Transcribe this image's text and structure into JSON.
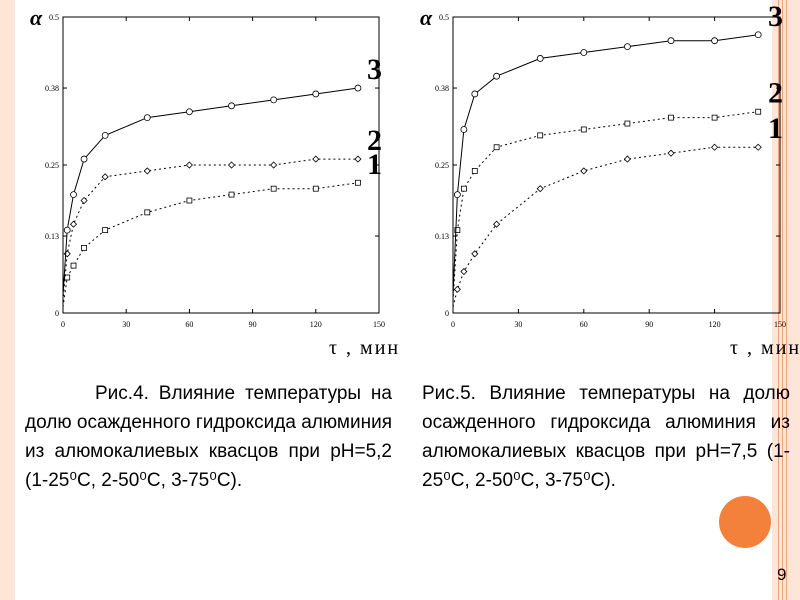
{
  "chart_data": [
    {
      "type": "scatter",
      "xlabel": "τ , мин",
      "ylabel": "α",
      "xlim": [
        0,
        150
      ],
      "ylim": [
        0,
        0.5
      ],
      "x_ticks": [
        "0",
        "30",
        "60",
        "90",
        "120",
        "150"
      ],
      "y_ticks": [
        "0",
        "0.13",
        "0.25",
        "0.38",
        "0.5"
      ],
      "series": [
        {
          "name": "1",
          "marker": "square",
          "x": [
            0,
            2,
            5,
            10,
            20,
            40,
            60,
            80,
            100,
            120,
            140
          ],
          "y": [
            0.01,
            0.06,
            0.08,
            0.11,
            0.14,
            0.17,
            0.19,
            0.2,
            0.21,
            0.21,
            0.22
          ]
        },
        {
          "name": "2",
          "marker": "diamond",
          "x": [
            0,
            2,
            5,
            10,
            20,
            40,
            60,
            80,
            100,
            120,
            140
          ],
          "y": [
            0.02,
            0.1,
            0.15,
            0.19,
            0.23,
            0.24,
            0.25,
            0.25,
            0.25,
            0.26,
            0.26
          ]
        },
        {
          "name": "3",
          "marker": "circle",
          "x": [
            0,
            2,
            5,
            10,
            20,
            40,
            60,
            80,
            100,
            120,
            140
          ],
          "y": [
            0.03,
            0.14,
            0.2,
            0.26,
            0.3,
            0.33,
            0.34,
            0.35,
            0.36,
            0.37,
            0.38
          ]
        }
      ]
    },
    {
      "type": "scatter",
      "xlabel": "τ , мин",
      "ylabel": "α",
      "xlim": [
        0,
        150
      ],
      "ylim": [
        0,
        0.5
      ],
      "x_ticks": [
        "0",
        "30",
        "60",
        "90",
        "120",
        "150"
      ],
      "y_ticks": [
        "0",
        "0.13",
        "0.25",
        "0.38",
        "0.5"
      ],
      "series": [
        {
          "name": "1",
          "marker": "diamond",
          "x": [
            0,
            2,
            5,
            10,
            20,
            40,
            60,
            80,
            100,
            120,
            140
          ],
          "y": [
            0.01,
            0.04,
            0.07,
            0.1,
            0.15,
            0.21,
            0.24,
            0.26,
            0.27,
            0.28,
            0.28
          ]
        },
        {
          "name": "2",
          "marker": "square",
          "x": [
            0,
            2,
            5,
            10,
            20,
            40,
            60,
            80,
            100,
            120,
            140
          ],
          "y": [
            0.02,
            0.14,
            0.21,
            0.24,
            0.28,
            0.3,
            0.31,
            0.32,
            0.33,
            0.33,
            0.34
          ]
        },
        {
          "name": "3",
          "marker": "circle",
          "x": [
            0,
            2,
            5,
            10,
            20,
            40,
            60,
            80,
            100,
            120,
            140
          ],
          "y": [
            0.03,
            0.2,
            0.31,
            0.37,
            0.4,
            0.43,
            0.44,
            0.45,
            0.46,
            0.46,
            0.47
          ]
        }
      ]
    }
  ],
  "captions": {
    "fig4": "Рис.4. Влияние температуры на долю осажденного гидроксида алюминия из алюмокалиевых квасцов при pH=5,2 (1-25⁰С, 2-50⁰С, 3-75⁰С).",
    "fig5": "Рис.5. Влияние температуры на долю осажденного гидроксида алюминия из алюмокалиевых квасцов при pH=7,5 (1-25⁰С, 2-50⁰С, 3-75⁰С)."
  },
  "page_number": "9",
  "colors": {
    "border": "#fde6d8",
    "stripe": "#f0a380",
    "accent": "#f4813b"
  }
}
